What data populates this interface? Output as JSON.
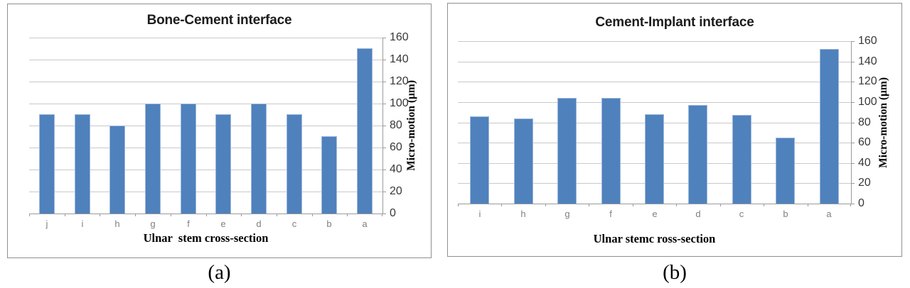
{
  "page": {
    "background": "#ffffff"
  },
  "figures": [
    {
      "caption": "(a)"
    },
    {
      "caption": "(b)"
    }
  ],
  "chart_data": [
    {
      "type": "bar",
      "title": "Bone-Cement interface",
      "xlabel": "Ulnar  stem cross-section",
      "ylabel": "Micro-motion (µm)",
      "categories": [
        "j",
        "i",
        "h",
        "g",
        "f",
        "e",
        "d",
        "c",
        "b",
        "a"
      ],
      "values": [
        90,
        90,
        80,
        100,
        100,
        90,
        100,
        90,
        70,
        150
      ],
      "ylim": [
        0,
        160
      ],
      "yticks": [
        0,
        20,
        40,
        60,
        80,
        100,
        120,
        140,
        160
      ],
      "grid": true,
      "legend": "none",
      "y_axis_side": "right",
      "bar_color": "#4f81bd",
      "caption": "(a)"
    },
    {
      "type": "bar",
      "title": "Cement-Implant interface",
      "xlabel": "Ulnar stemc ross-section",
      "ylabel": "Micro-motion (µm)",
      "categories": [
        "i",
        "h",
        "g",
        "f",
        "e",
        "d",
        "c",
        "b",
        "a"
      ],
      "values": [
        86,
        84,
        104,
        104,
        88,
        97,
        87,
        65,
        152
      ],
      "ylim": [
        0,
        160
      ],
      "yticks": [
        0,
        20,
        40,
        60,
        80,
        100,
        120,
        140,
        160
      ],
      "grid": true,
      "legend": "none",
      "y_axis_side": "right",
      "bar_color": "#4f81bd",
      "caption": "(b)"
    }
  ]
}
